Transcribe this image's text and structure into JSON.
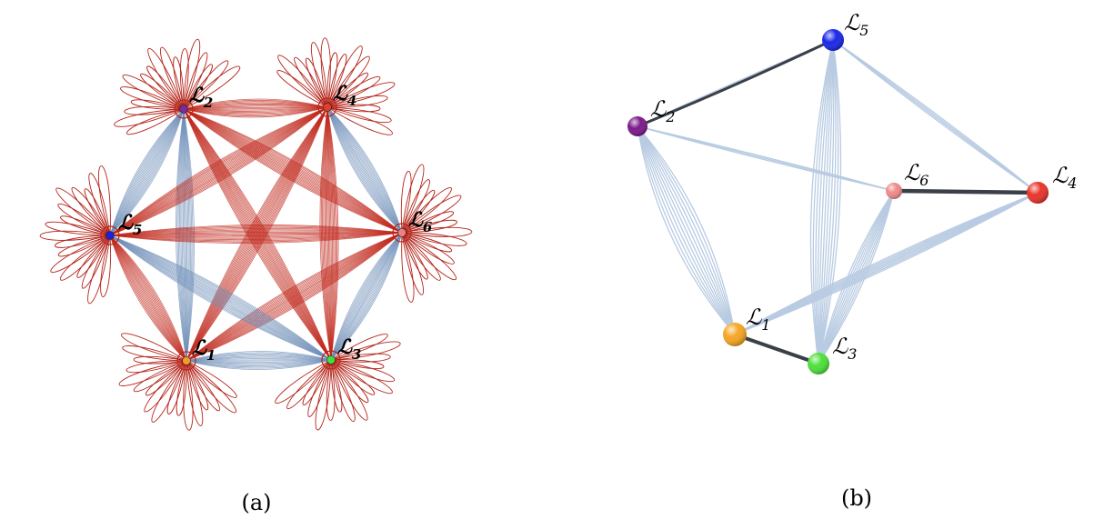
{
  "panels": [
    {
      "id": "a",
      "caption": "(a)",
      "nodes": [
        {
          "id": "L1",
          "script": "ℒ",
          "sub": "1",
          "color": "#f39a2b"
        },
        {
          "id": "L2",
          "script": "ℒ",
          "sub": "2",
          "color": "#7a2a9a"
        },
        {
          "id": "L3",
          "script": "ℒ",
          "sub": "3",
          "color": "#3ee03a"
        },
        {
          "id": "L4",
          "script": "ℒ",
          "sub": "4",
          "color": "#e0402a"
        },
        {
          "id": "L5",
          "script": "ℒ",
          "sub": "5",
          "color": "#1a22e0"
        },
        {
          "id": "L6",
          "script": "ℒ",
          "sub": "6",
          "color": "#f08080"
        }
      ],
      "colors": {
        "loop": "#b5251b",
        "blue_edge": "#6f8fb8",
        "red_edge": "#c0281c"
      }
    },
    {
      "id": "b",
      "caption": "(b)",
      "nodes": [
        {
          "id": "L1",
          "script": "ℒ",
          "sub": "1",
          "color": "#f5a623"
        },
        {
          "id": "L2",
          "script": "ℒ",
          "sub": "2",
          "color": "#7b1a8a"
        },
        {
          "id": "L3",
          "script": "ℒ",
          "sub": "3",
          "color": "#4de03a"
        },
        {
          "id": "L4",
          "script": "ℒ",
          "sub": "4",
          "color": "#e8342a"
        },
        {
          "id": "L5",
          "script": "ℒ",
          "sub": "5",
          "color": "#1a28e8"
        },
        {
          "id": "L6",
          "script": "ℒ",
          "sub": "6",
          "color": "#f08a8a"
        }
      ],
      "colors": {
        "light_edge": "#b8cbe2",
        "dark_edge": "#3a3f48"
      }
    }
  ]
}
